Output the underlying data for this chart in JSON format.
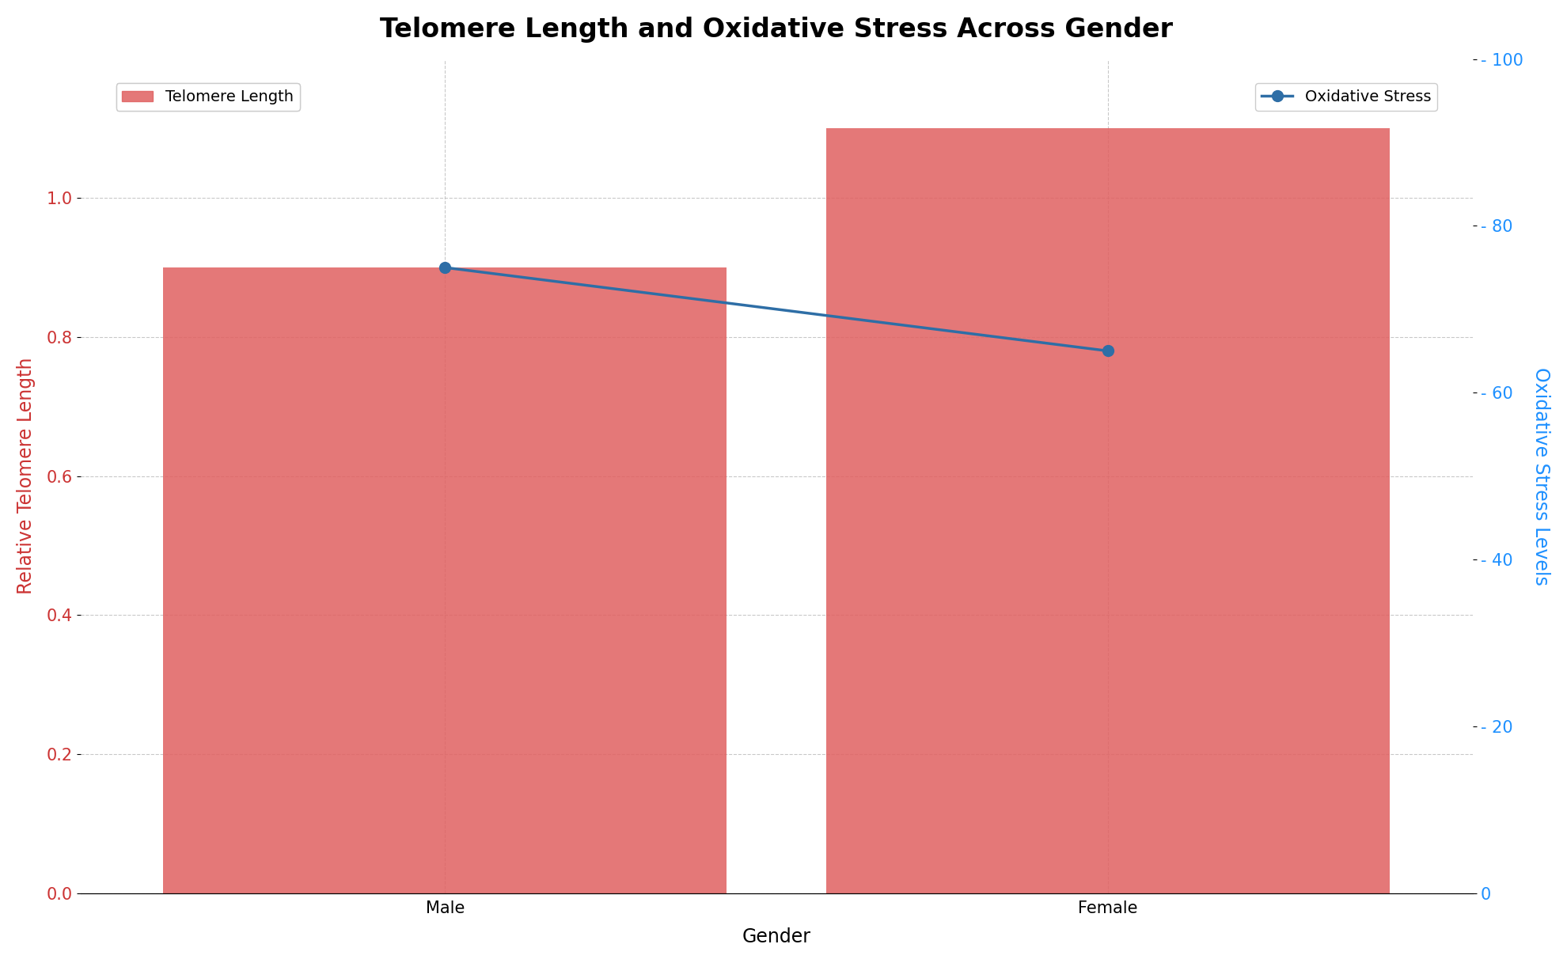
{
  "title": "Telomere Length and Oxidative Stress Across Gender",
  "categories": [
    "Male",
    "Female"
  ],
  "telomere_values": [
    0.9,
    1.1
  ],
  "oxidative_stress_values": [
    75,
    65
  ],
  "bar_color": "#E06060",
  "bar_alpha": 0.85,
  "line_color": "#2E6EA6",
  "line_marker": "o",
  "line_marker_size": 10,
  "line_marker_facecolor": "#2E6EA6",
  "line_width": 2.5,
  "xlabel": "Gender",
  "ylabel_left": "Relative Telomere Length",
  "ylabel_right": "Oxidative Stress Levels",
  "ylabel_left_color": "#CC3333",
  "ylabel_right_color": "#1E90FF",
  "ylim_left": [
    0.0,
    1.2
  ],
  "ylim_right": [
    0,
    100
  ],
  "yticks_left": [
    0.0,
    0.2,
    0.4,
    0.6,
    0.8,
    1.0
  ],
  "yticks_right": [
    0,
    20,
    40,
    60,
    80,
    100
  ],
  "title_fontsize": 24,
  "label_fontsize": 17,
  "tick_fontsize": 15,
  "legend_fontsize": 14,
  "grid_color": "#BBBBBB",
  "grid_linestyle": "--",
  "grid_alpha": 0.8,
  "background_color": "#FFFFFF",
  "bar_width": 0.85,
  "x_positions": [
    0,
    1
  ],
  "xlim": [
    -0.55,
    1.55
  ],
  "legend_telomere_label": "Telomere Length",
  "legend_oxidative_label": "Oxidative Stress"
}
